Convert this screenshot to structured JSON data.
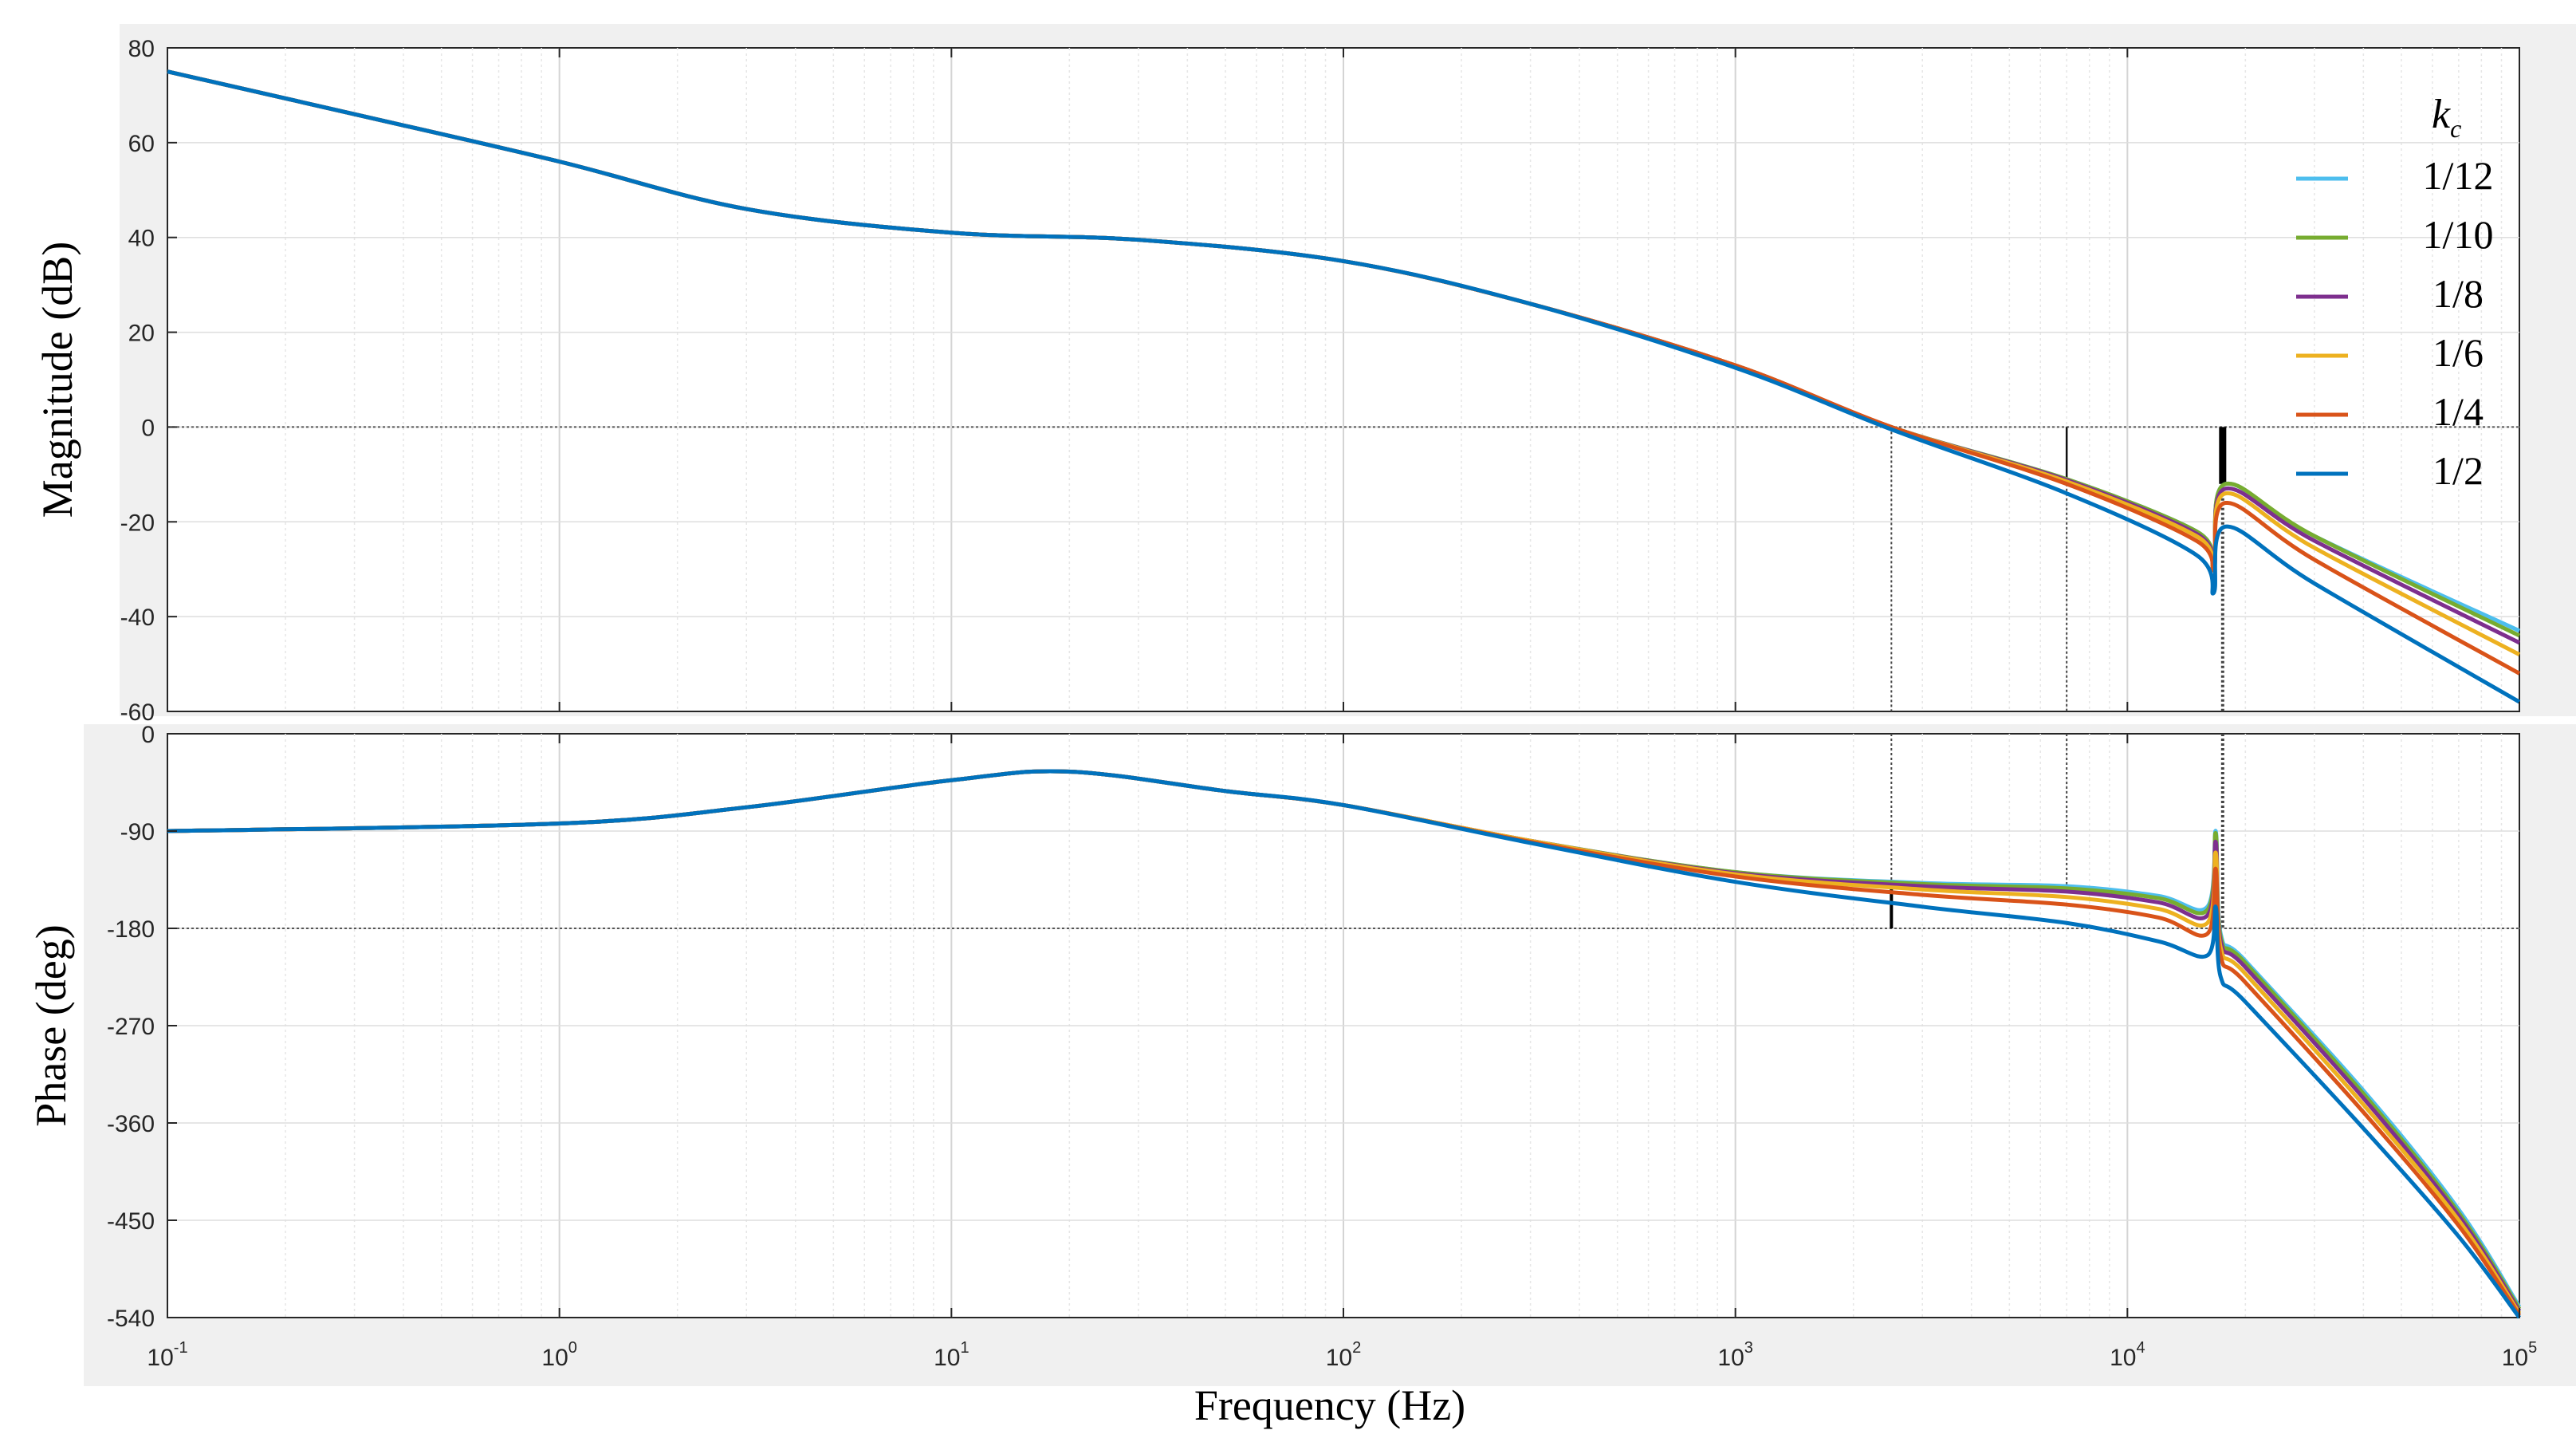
{
  "chart_data": {
    "type": "line",
    "xlabel": "Frequency (Hz)",
    "x_scale": "log",
    "xlim": [
      0.1,
      100000
    ],
    "x_ticks": [
      {
        "base": "10",
        "exp": "-1"
      },
      {
        "base": "10",
        "exp": "0"
      },
      {
        "base": "10",
        "exp": "1"
      },
      {
        "base": "10",
        "exp": "2"
      },
      {
        "base": "10",
        "exp": "3"
      },
      {
        "base": "10",
        "exp": "4"
      },
      {
        "base": "10",
        "exp": "5"
      }
    ],
    "grid": true,
    "legend": {
      "title_base": "k",
      "title_sub": "c",
      "placement": "top-right",
      "entries": [
        "1/12",
        "1/10",
        "1/8",
        "1/6",
        "1/4",
        "1/2"
      ]
    },
    "colors": [
      "#4DBEEE",
      "#77AC30",
      "#7E2F8E",
      "#EDB120",
      "#D95319",
      "#0072BD"
    ],
    "magnitude": {
      "ylabel": "Magnitude (dB)",
      "ylim": [
        -60,
        80
      ],
      "yticks": [
        "80",
        "60",
        "40",
        "20",
        "0",
        "-20",
        "-40",
        "-60"
      ],
      "x": [
        0.1,
        0.3,
        1,
        3,
        10,
        30,
        100,
        300,
        1000,
        2500,
        7000,
        15000,
        16600,
        17800,
        30000,
        100000
      ],
      "series": [
        {
          "name": "1/12",
          "values": [
            75,
            66,
            56,
            46,
            41,
            39.5,
            35,
            26,
            13,
            0,
            -11,
            -22,
            -28,
            -12,
            -23,
            -43
          ]
        },
        {
          "name": "1/10",
          "values": [
            75,
            66,
            56,
            46,
            41,
            39.5,
            35,
            26,
            13,
            0,
            -11,
            -22,
            -28,
            -12,
            -23,
            -44
          ]
        },
        {
          "name": "1/8",
          "values": [
            75,
            66,
            56,
            46,
            41,
            39.5,
            35,
            26,
            13,
            0,
            -11.2,
            -22.5,
            -28.5,
            -13,
            -24,
            -45.5
          ]
        },
        {
          "name": "1/6",
          "values": [
            75,
            66,
            56,
            46,
            41,
            39.5,
            35,
            26,
            13,
            0,
            -11.5,
            -23,
            -29,
            -14,
            -25.5,
            -48
          ]
        },
        {
          "name": "1/4",
          "values": [
            75,
            66,
            56,
            46,
            41,
            39.5,
            35,
            26,
            13,
            0,
            -12,
            -24,
            -30,
            -16,
            -28,
            -52
          ]
        },
        {
          "name": "1/2",
          "values": [
            75,
            66,
            56,
            46,
            41,
            39.5,
            35,
            26,
            12.5,
            -0.5,
            -14,
            -27,
            -35,
            -21,
            -33,
            -58
          ]
        }
      ]
    },
    "phase": {
      "ylabel": "Phase (deg)",
      "ylim": [
        -540,
        0
      ],
      "yticks": [
        "0",
        "-90",
        "-180",
        "-270",
        "-360",
        "-450",
        "-540"
      ],
      "x": [
        0.1,
        1,
        3,
        10,
        20,
        50,
        100,
        300,
        1000,
        3000,
        7000,
        12000,
        16000,
        16800,
        17300,
        20000,
        40000,
        70000,
        100000
      ],
      "series": [
        {
          "name": "1/12",
          "values": [
            -90,
            -83,
            -68,
            -43,
            -35,
            -53,
            -66,
            -99,
            -128,
            -138,
            -141,
            -150,
            -160,
            -90,
            -185,
            -210,
            -330,
            -440,
            -530
          ]
        },
        {
          "name": "1/10",
          "values": [
            -90,
            -83,
            -68,
            -43,
            -35,
            -53,
            -66,
            -99,
            -128,
            -139,
            -143,
            -152,
            -163,
            -92,
            -188,
            -212,
            -333,
            -443,
            -532
          ]
        },
        {
          "name": "1/8",
          "values": [
            -90,
            -83,
            -68,
            -43,
            -35,
            -53,
            -66,
            -99,
            -129,
            -141,
            -146,
            -156,
            -168,
            -100,
            -192,
            -216,
            -337,
            -446,
            -534
          ]
        },
        {
          "name": "1/6",
          "values": [
            -90,
            -83,
            -68,
            -43,
            -35,
            -53,
            -66,
            -99,
            -130,
            -144,
            -151,
            -162,
            -175,
            -110,
            -198,
            -222,
            -343,
            -450,
            -536
          ]
        },
        {
          "name": "1/4",
          "values": [
            -90,
            -83,
            -68,
            -43,
            -35,
            -53,
            -66,
            -100,
            -132,
            -149,
            -158,
            -170,
            -185,
            -125,
            -206,
            -230,
            -350,
            -455,
            -538
          ]
        },
        {
          "name": "1/2",
          "values": [
            -90,
            -83,
            -68,
            -43,
            -35,
            -53,
            -66,
            -101,
            -137,
            -160,
            -175,
            -192,
            -205,
            -160,
            -225,
            -248,
            -365,
            -465,
            -540
          ]
        }
      ]
    },
    "markers": {
      "magnitude_zero_crossing_hz": 2500,
      "magnitude_secondary_hz": 7000,
      "resonance_hz": 17500,
      "phase_reference_deg": -180
    }
  }
}
